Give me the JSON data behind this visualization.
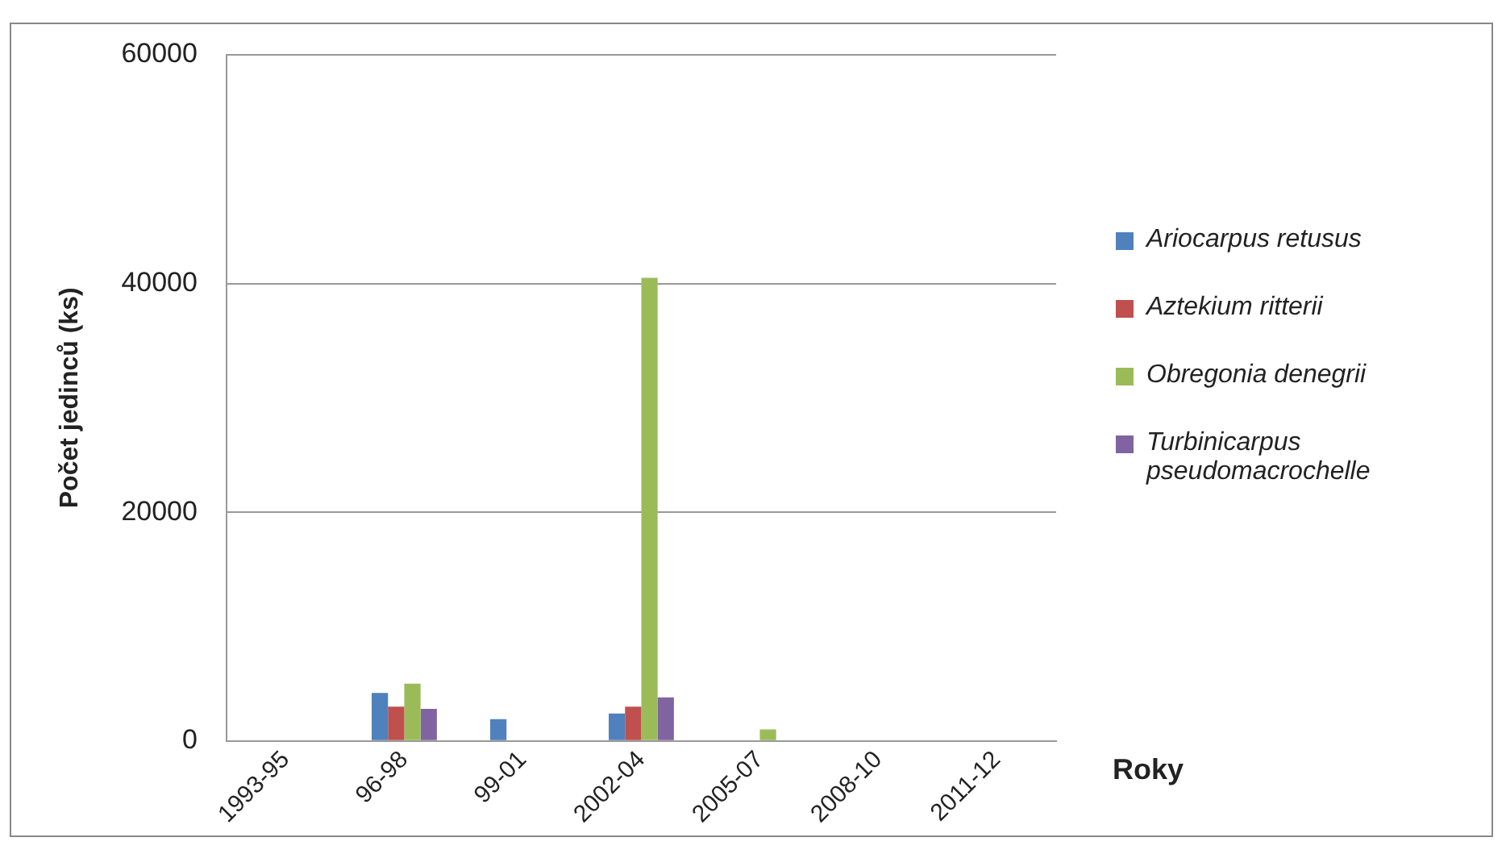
{
  "chart_data": {
    "type": "bar",
    "xlabel": "Roky",
    "ylabel": "Počet jedinců (ks)",
    "categories": [
      "1993-95",
      "96-98",
      "99-01",
      "2002-04",
      "2005-07",
      "2008-10",
      "2011-12"
    ],
    "series": [
      {
        "name": "Ariocarpus retusus",
        "color": "#4f81bd",
        "values": [
          null,
          4200,
          1900,
          2400,
          null,
          null,
          null
        ]
      },
      {
        "name": "Aztekium ritterii",
        "color": "#c0504d",
        "values": [
          null,
          3000,
          null,
          3000,
          null,
          null,
          null
        ]
      },
      {
        "name": "Obregonia denegrii",
        "color": "#9bbb59",
        "values": [
          null,
          5000,
          null,
          40500,
          1000,
          null,
          null
        ]
      },
      {
        "name": "Turbinicarpus pseudomacrochelle",
        "color": "#8064a2",
        "values": [
          null,
          2800,
          null,
          3800,
          null,
          null,
          null
        ]
      }
    ],
    "ylim": [
      0,
      60000
    ],
    "yticks": [
      0,
      20000,
      40000,
      60000
    ],
    "grid": "y",
    "legend": "right"
  }
}
